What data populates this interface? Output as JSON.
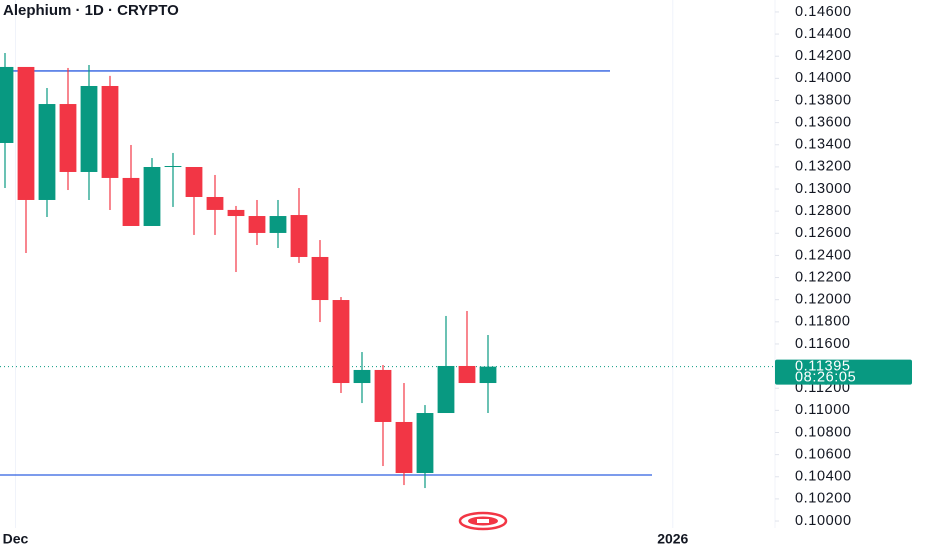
{
  "chart_data": {
    "type": "candlestick",
    "title": "Alephium · 1D · CRYPTO",
    "up_color": "#089981",
    "down_color": "#f23645",
    "open": [
      0.13416,
      0.14103,
      0.12901,
      0.13768,
      0.13154,
      0.13931,
      0.131,
      0.12666,
      0.13199,
      0.13199,
      0.12928,
      0.12811,
      0.12756,
      0.12603,
      0.12765,
      0.12386,
      0.11997,
      0.11247,
      0.11365,
      0.10895,
      0.10434,
      0.10976,
      0.11401,
      0.11247
    ],
    "high": [
      0.14229,
      0.14103,
      0.13913,
      0.14094,
      0.14121,
      0.14022,
      0.13398,
      0.1328,
      0.13326,
      0.13199,
      0.13127,
      0.12847,
      0.12901,
      0.12901,
      0.13009,
      0.12539,
      0.12024,
      0.11527,
      0.1141,
      0.11247,
      0.11048,
      0.11853,
      0.11898,
      0.11681
    ],
    "low": [
      0.13009,
      0.12422,
      0.12747,
      0.12991,
      0.12901,
      0.12811,
      0.12666,
      0.12666,
      0.12838,
      0.12585,
      0.12585,
      0.1225,
      0.12494,
      0.12467,
      0.12332,
      0.11798,
      0.11157,
      0.11066,
      0.10497,
      0.10325,
      0.10298,
      0.10976,
      0.11247,
      0.10976
    ],
    "close": [
      0.14103,
      0.12901,
      0.13768,
      0.13154,
      0.13931,
      0.131,
      0.12666,
      0.13199,
      0.13208,
      0.12928,
      0.12811,
      0.12756,
      0.12603,
      0.12756,
      0.12386,
      0.11997,
      0.11247,
      0.11365,
      0.10895,
      0.10434,
      0.10976,
      0.11401,
      0.11247,
      0.11395
    ],
    "horizontal_lines": [
      {
        "value": 0.14067,
        "color": "#2f5fe0"
      },
      {
        "value": 0.10416,
        "color": "#2f5fe0"
      }
    ],
    "last_price": 0.11395,
    "countdown": "08:26:05",
    "xlim": [
      -0.238,
      36.667
    ],
    "xticks": [
      {
        "value": 0.5,
        "label": "Dec"
      },
      {
        "value": 31.8,
        "label": "2026"
      }
    ],
    "ylim": [
      0.09937,
      0.14708
    ],
    "yticks": [
      {
        "value": 0.146,
        "label": "0.14600"
      },
      {
        "value": 0.144,
        "label": "0.14400"
      },
      {
        "value": 0.142,
        "label": "0.14200"
      },
      {
        "value": 0.14,
        "label": "0.14000"
      },
      {
        "value": 0.138,
        "label": "0.13800"
      },
      {
        "value": 0.136,
        "label": "0.13600"
      },
      {
        "value": 0.134,
        "label": "0.13400"
      },
      {
        "value": 0.132,
        "label": "0.13200"
      },
      {
        "value": 0.13,
        "label": "0.13000"
      },
      {
        "value": 0.128,
        "label": "0.12800"
      },
      {
        "value": 0.126,
        "label": "0.12600"
      },
      {
        "value": 0.124,
        "label": "0.12400"
      },
      {
        "value": 0.122,
        "label": "0.12200"
      },
      {
        "value": 0.12,
        "label": "0.12000"
      },
      {
        "value": 0.118,
        "label": "0.11800"
      },
      {
        "value": 0.116,
        "label": "0.11600"
      },
      {
        "value": 0.112,
        "label": "0.11200"
      },
      {
        "value": 0.11,
        "label": "0.11000"
      },
      {
        "value": 0.108,
        "label": "0.10800"
      },
      {
        "value": 0.106,
        "label": "0.10600"
      },
      {
        "value": 0.104,
        "label": "0.10400"
      },
      {
        "value": 0.102,
        "label": "0.10200"
      },
      {
        "value": 0.1,
        "label": "0.10000"
      }
    ]
  }
}
